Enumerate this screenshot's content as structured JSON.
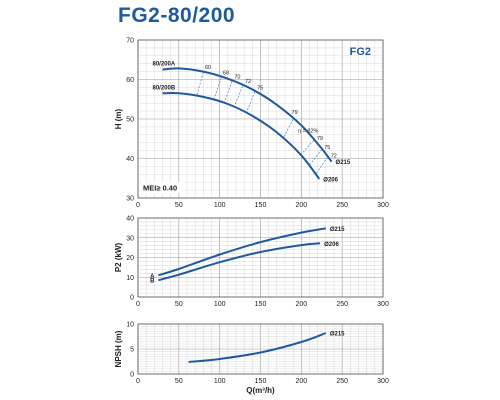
{
  "title": "FG2-80/200",
  "chart_data": [
    {
      "type": "line",
      "panel": "head",
      "badge": "FG2",
      "mei_note": "MEI≥ 0.40",
      "ylabel": "H (m)",
      "xlim": [
        0,
        300
      ],
      "ylim": [
        30,
        70
      ],
      "xticks": [
        0,
        50,
        100,
        150,
        200,
        250,
        300
      ],
      "yticks": [
        30,
        40,
        50,
        60,
        70
      ],
      "series": [
        {
          "name": "80/200A",
          "end_label": "Ø215",
          "x": [
            30,
            50,
            80,
            110,
            140,
            170,
            200,
            225,
            237
          ],
          "y": [
            62.5,
            62.8,
            62.0,
            60.2,
            57.5,
            53.6,
            48.4,
            42.5,
            39.2
          ]
        },
        {
          "name": "80/200B",
          "end_label": "Ø206",
          "x": [
            30,
            50,
            80,
            110,
            140,
            170,
            200,
            222
          ],
          "y": [
            56.5,
            56.5,
            55.6,
            53.8,
            50.8,
            46.6,
            40.8,
            34.8
          ]
        }
      ],
      "efficiency_labels": [
        "60",
        "68",
        "70",
        "72",
        "75",
        "79",
        "η = 82%",
        "79",
        "75",
        "72"
      ],
      "grid": true,
      "legend": "none"
    },
    {
      "type": "line",
      "panel": "power",
      "ylabel": "P2 (kW)",
      "xlim": [
        0,
        300
      ],
      "ylim": [
        0,
        40
      ],
      "xticks": [
        0,
        50,
        100,
        150,
        200,
        250,
        300
      ],
      "yticks": [
        0,
        10,
        20,
        30,
        40
      ],
      "series": [
        {
          "name": "A",
          "end_label": "Ø215",
          "x": [
            25,
            50,
            100,
            150,
            200,
            230
          ],
          "y": [
            11.0,
            14.2,
            21.5,
            27.8,
            32.6,
            34.8
          ]
        },
        {
          "name": "B",
          "end_label": "Ø206",
          "x": [
            25,
            50,
            100,
            150,
            200,
            223
          ],
          "y": [
            8.5,
            11.3,
            17.6,
            22.8,
            26.3,
            27.2
          ]
        }
      ],
      "grid": true,
      "legend": "none"
    },
    {
      "type": "line",
      "panel": "npsh",
      "ylabel": "NPSH (m)",
      "xlabel": "Q(m³/h)",
      "xlim": [
        0,
        300
      ],
      "ylim": [
        0,
        10
      ],
      "xticks": [
        0,
        50,
        100,
        150,
        200,
        250,
        300
      ],
      "yticks": [
        0,
        5,
        10
      ],
      "series": [
        {
          "name": "",
          "end_label": "Ø215",
          "x": [
            62,
            100,
            150,
            200,
            230
          ],
          "y": [
            2.4,
            3.0,
            4.3,
            6.4,
            8.2
          ]
        }
      ],
      "grid": true,
      "legend": "none"
    }
  ]
}
